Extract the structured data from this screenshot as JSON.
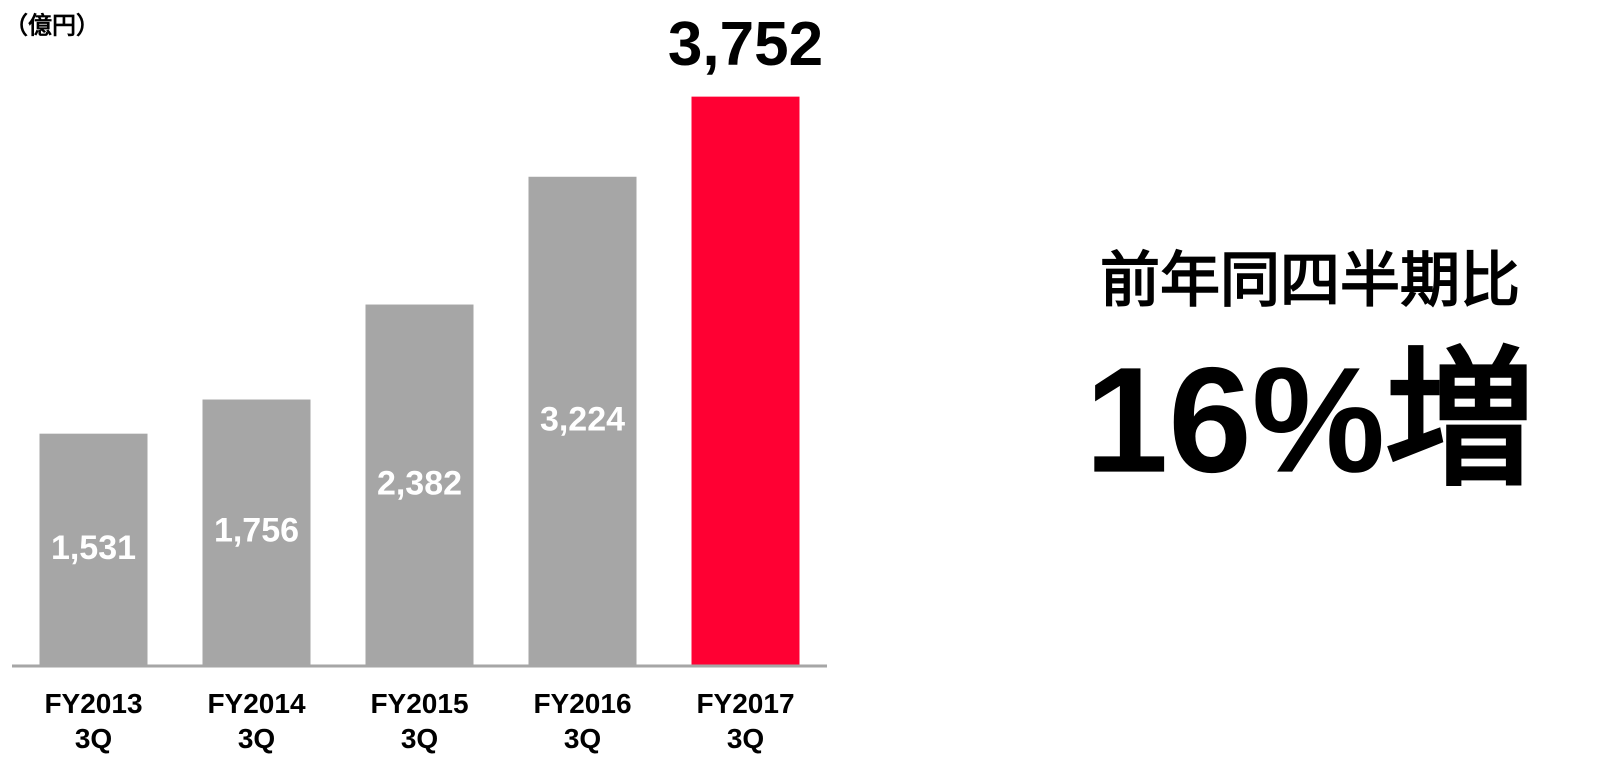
{
  "chart_data": {
    "type": "bar",
    "unit_label": "（億円）",
    "categories": [
      "FY2013\n3Q",
      "FY2014\n3Q",
      "FY2015\n3Q",
      "FY2016\n3Q",
      "FY2017\n3Q"
    ],
    "values": [
      1531,
      1756,
      2382,
      3224,
      3752
    ],
    "value_labels": [
      "1,531",
      "1,756",
      "2,382",
      "3,224",
      "3,752"
    ],
    "colors": [
      "#a6a6a6",
      "#a6a6a6",
      "#a6a6a6",
      "#a6a6a6",
      "#ff0033"
    ],
    "highlight": 4,
    "ylim": [
      0,
      4000
    ],
    "annotations": [
      "前年同四半期比",
      "16%増"
    ]
  }
}
